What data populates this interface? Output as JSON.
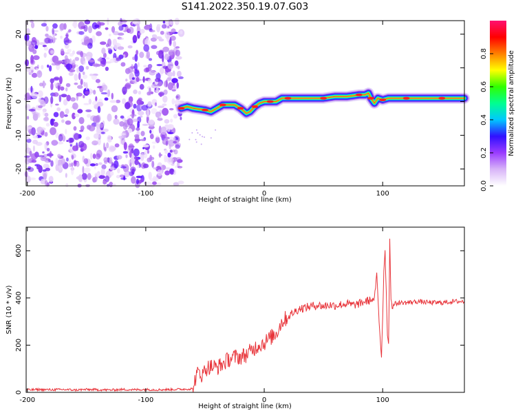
{
  "figure": {
    "title": "S141.2022.350.19.07.G03"
  },
  "chart_data": [
    {
      "type": "heatmap",
      "xlabel": "Height of straight line (km)",
      "ylabel": "Frequency (Hz)",
      "xlim": [
        -201,
        169
      ],
      "ylim": [
        -25,
        24
      ],
      "x_ticks": [
        -200,
        -100,
        0,
        100
      ],
      "y_ticks": [
        -20,
        -10,
        0,
        10,
        20
      ],
      "grid": false,
      "noise_region": {
        "x_start": -201,
        "x_end": -70,
        "description_values": "broadband noise across all frequencies"
      },
      "ridge": {
        "x": [
          -70,
          -65,
          -60,
          -50,
          -45,
          -40,
          -35,
          -30,
          -25,
          -20,
          -15,
          -12,
          -8,
          -4,
          0,
          5,
          10,
          15,
          20,
          30,
          40,
          50,
          60,
          70,
          80,
          85,
          88,
          90,
          93,
          96,
          100,
          105,
          110,
          120,
          130,
          140,
          150,
          160,
          169
        ],
        "y": [
          -2,
          -1.5,
          -2,
          -2.5,
          -3,
          -2,
          -1,
          -1,
          -1,
          -2,
          -3.5,
          -3,
          -1.5,
          -0.5,
          0,
          0,
          0,
          1,
          1,
          1,
          1,
          1,
          1.5,
          1.5,
          2,
          2,
          2.5,
          1,
          -0.5,
          1,
          0.5,
          1,
          1,
          1,
          1,
          1,
          1,
          1,
          1
        ]
      },
      "colorbar": {
        "label": "Normalized spectral amplitude",
        "range": [
          0,
          1
        ],
        "ticks": [
          "0.0",
          "0.2",
          "0.4",
          "0.6",
          "0.8"
        ],
        "colors": [
          "#ffffff",
          "#d8b4f8",
          "#9a3cff",
          "#3010ff",
          "#00c8ff",
          "#00ff90",
          "#30ff00",
          "#ffff00",
          "#ff8000",
          "#ff0000",
          "#ff1070"
        ]
      }
    },
    {
      "type": "line",
      "xlabel": "Height of straight line (km)",
      "ylabel": "SNR (10 * v/v)",
      "xlim": [
        -201,
        169
      ],
      "ylim": [
        0,
        700
      ],
      "x_ticks": [
        -200,
        -100,
        0,
        100
      ],
      "y_ticks": [
        0,
        200,
        400,
        600
      ],
      "grid": false,
      "line_color": "#e8343a",
      "series": [
        {
          "x": [
            -201,
            -190,
            -180,
            -170,
            -160,
            -150,
            -140,
            -130,
            -120,
            -110,
            -100,
            -90,
            -80,
            -70,
            -65,
            -60,
            -58,
            -55,
            -52,
            -50,
            -45,
            -40,
            -35,
            -30,
            -25,
            -20,
            -15,
            -10,
            -5,
            0,
            5,
            10,
            15,
            20,
            25,
            30,
            35,
            40,
            45,
            50,
            55,
            60,
            65,
            70,
            75,
            80,
            85,
            90,
            93,
            95,
            97,
            98,
            99,
            100,
            101,
            102,
            103,
            104,
            105,
            106,
            107,
            108,
            110,
            115,
            120,
            130,
            140,
            150,
            160,
            169
          ],
          "y": [
            10,
            12,
            11,
            12,
            10,
            12,
            11,
            10,
            12,
            11,
            12,
            11,
            12,
            13,
            14,
            15,
            60,
            90,
            70,
            100,
            110,
            105,
            120,
            140,
            150,
            150,
            160,
            180,
            200,
            210,
            230,
            250,
            300,
            320,
            340,
            355,
            360,
            365,
            370,
            365,
            370,
            368,
            372,
            375,
            370,
            375,
            385,
            390,
            395,
            500,
            300,
            220,
            150,
            320,
            520,
            600,
            430,
            250,
            200,
            650,
            400,
            360,
            375,
            380,
            380,
            385,
            380,
            380,
            385,
            385
          ]
        }
      ]
    }
  ]
}
